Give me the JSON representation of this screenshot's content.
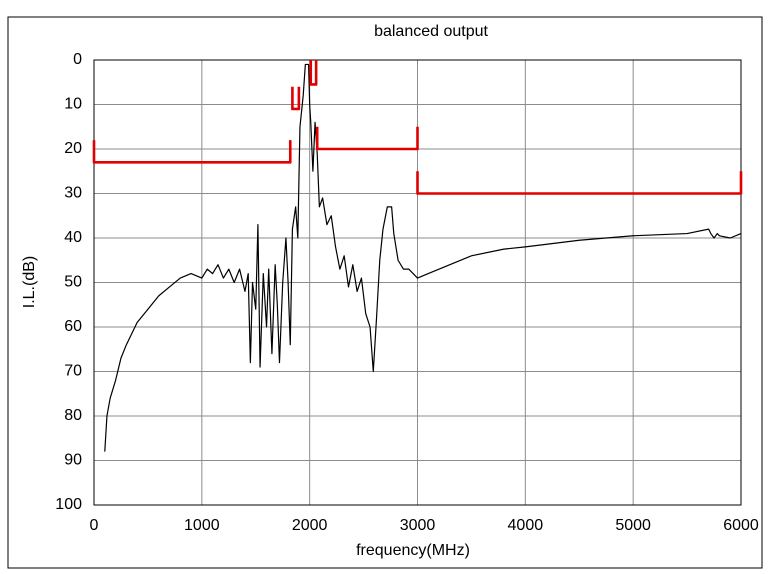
{
  "chart_data": {
    "type": "line",
    "title": "balanced output",
    "xlabel": "frequency(MHz)",
    "ylabel": "I.L.(dB)",
    "xlim": [
      0,
      6000
    ],
    "xticks": [
      0,
      1000,
      2000,
      3000,
      4000,
      5000,
      6000
    ],
    "ylim": [
      100,
      0
    ],
    "yticks": [
      0,
      10,
      20,
      30,
      40,
      50,
      60,
      70,
      80,
      90,
      100
    ],
    "grid": true,
    "series": [
      {
        "color": "#000000",
        "x": [
          100,
          120,
          150,
          200,
          250,
          300,
          400,
          500,
          600,
          700,
          800,
          900,
          1000,
          1050,
          1100,
          1150,
          1200,
          1250,
          1300,
          1350,
          1400,
          1430,
          1450,
          1470,
          1500,
          1520,
          1540,
          1570,
          1600,
          1620,
          1650,
          1680,
          1700,
          1720,
          1750,
          1780,
          1800,
          1820,
          1840,
          1870,
          1890,
          1910,
          1940,
          1960,
          1990,
          2000,
          2010,
          2030,
          2050,
          2070,
          2090,
          2120,
          2160,
          2200,
          2240,
          2280,
          2320,
          2360,
          2400,
          2440,
          2480,
          2520,
          2560,
          2590,
          2620,
          2650,
          2680,
          2720,
          2760,
          2780,
          2820,
          2870,
          2920,
          3000,
          3100,
          3300,
          3500,
          3800,
          4000,
          4500,
          5000,
          5500,
          5700,
          5720,
          5750,
          5780,
          5800,
          5900,
          6000
        ],
        "values": [
          88,
          80,
          76,
          72,
          67,
          64,
          59,
          56,
          53,
          51,
          49,
          48,
          49,
          47,
          48,
          46,
          49,
          47,
          50,
          47,
          52,
          48,
          68,
          50,
          56,
          37,
          69,
          48,
          60,
          47,
          66,
          46,
          55,
          68,
          50,
          40,
          50,
          64,
          38,
          33,
          40,
          15,
          8,
          1,
          1,
          10,
          14,
          25,
          14,
          21,
          33,
          31,
          37,
          35,
          42,
          47,
          44,
          51,
          46,
          52,
          49,
          57,
          60,
          70,
          58,
          45,
          38,
          33,
          33,
          39,
          45,
          47,
          47,
          49,
          48,
          46,
          44,
          42.5,
          42,
          40.5,
          39.5,
          39,
          38,
          39,
          40,
          39,
          39.5,
          40,
          39
        ]
      },
      {
        "color": "#e00000",
        "x": [
          0,
          0,
          1820,
          1820,
          null,
          1840,
          1840,
          1900,
          1900,
          null,
          2010,
          2010,
          2060,
          2060,
          null,
          2070,
          2070,
          3000,
          3000,
          null,
          3000,
          3000,
          6000,
          6000
        ],
        "values": [
          18,
          23,
          23,
          18,
          null,
          6,
          11,
          11,
          6,
          null,
          0,
          5.5,
          5.5,
          0,
          null,
          15,
          20,
          20,
          15,
          null,
          25,
          30,
          30,
          25
        ]
      }
    ]
  }
}
